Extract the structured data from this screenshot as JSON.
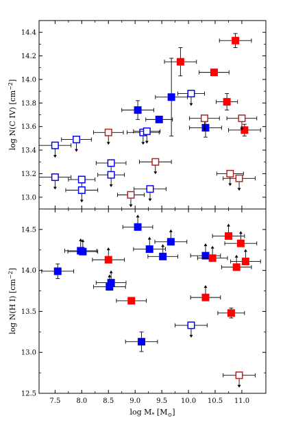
{
  "chart_data": [
    {
      "panel": "top",
      "type": "scatter",
      "ylabel": "log N(C IV) [cm$^{-2}$]",
      "ylabel_parts": [
        "log N(C IV) [cm",
        "−2",
        "]"
      ],
      "xlim": [
        7.2,
        11.45
      ],
      "ylim": [
        12.9,
        14.5
      ],
      "yticks": [
        13.0,
        13.2,
        13.4,
        13.6,
        13.8,
        14.0,
        14.2,
        14.4
      ],
      "ytick_labels": [
        "13.0",
        "13.2",
        "13.4",
        "13.6",
        "13.8",
        "14.0",
        "14.2",
        "14.4"
      ],
      "grid": false,
      "series": [
        {
          "marker": "filled-square",
          "color": "#0000ff",
          "limit": "none",
          "points": [
            {
              "x": 9.05,
              "y": 13.74,
              "xerr": 0.3,
              "yerr": 0.08
            },
            {
              "x": 9.45,
              "y": 13.66,
              "xerr": 0.25,
              "yerr": 0.0
            },
            {
              "x": 9.68,
              "y": 13.85,
              "xerr": 0.3,
              "yerr": 0.33
            },
            {
              "x": 10.32,
              "y": 13.59,
              "xerr": 0.3,
              "yerr": 0.08
            }
          ]
        },
        {
          "marker": "filled-square",
          "color": "#ff0000",
          "limit": "none",
          "points": [
            {
              "x": 9.85,
              "y": 14.15,
              "xerr": 0.3,
              "yerr": 0.12
            },
            {
              "x": 10.48,
              "y": 14.06,
              "xerr": 0.28,
              "yerr": 0.0
            },
            {
              "x": 10.72,
              "y": 13.81,
              "xerr": 0.2,
              "yerr": 0.07
            },
            {
              "x": 10.88,
              "y": 14.33,
              "xerr": 0.3,
              "yerr": 0.06
            },
            {
              "x": 11.05,
              "y": 13.57,
              "xerr": 0.3,
              "yerr": 0.05
            }
          ]
        },
        {
          "marker": "open-square",
          "color": "#0000ff",
          "limit": "upper",
          "points": [
            {
              "x": 7.5,
              "y": 13.44,
              "xerr": 0.3
            },
            {
              "x": 7.5,
              "y": 13.17,
              "xerr": 0.3
            },
            {
              "x": 7.9,
              "y": 13.49,
              "xerr": 0.28
            },
            {
              "x": 8.0,
              "y": 13.15,
              "xerr": 0.25
            },
            {
              "x": 8.0,
              "y": 13.06,
              "xerr": 0.3
            },
            {
              "x": 8.55,
              "y": 13.29,
              "xerr": 0.28
            },
            {
              "x": 8.55,
              "y": 13.19,
              "xerr": 0.25
            },
            {
              "x": 9.15,
              "y": 13.55,
              "xerr": 0.3
            },
            {
              "x": 9.22,
              "y": 13.56,
              "xerr": 0.25
            },
            {
              "x": 9.28,
              "y": 13.07,
              "xerr": 0.3
            },
            {
              "x": 10.05,
              "y": 13.88,
              "xerr": 0.25
            }
          ]
        },
        {
          "marker": "open-square",
          "color": "#b22222",
          "limit": "upper",
          "points": [
            {
              "x": 8.5,
              "y": 13.55,
              "xerr": 0.28
            },
            {
              "x": 8.92,
              "y": 13.02,
              "xerr": 0.25
            },
            {
              "x": 9.38,
              "y": 13.3,
              "xerr": 0.3
            },
            {
              "x": 10.3,
              "y": 13.67,
              "xerr": 0.28
            },
            {
              "x": 10.78,
              "y": 13.2,
              "xerr": 0.25
            },
            {
              "x": 10.95,
              "y": 13.16,
              "xerr": 0.3
            },
            {
              "x": 11.0,
              "y": 13.67,
              "xerr": 0.28
            }
          ]
        }
      ]
    },
    {
      "panel": "bottom",
      "type": "scatter",
      "xlabel": "log M$_*$ [M$_\\odot$]",
      "xlabel_parts": [
        "log M",
        "*",
        " [M",
        "⊙",
        "]"
      ],
      "ylabel": "log N(H I) [cm$^{-2}$]",
      "ylabel_parts": [
        "log N(H I) [cm",
        "−2",
        "]"
      ],
      "xlim": [
        7.2,
        11.45
      ],
      "ylim": [
        12.5,
        14.75
      ],
      "xticks": [
        7.5,
        8.0,
        8.5,
        9.0,
        9.5,
        10.0,
        10.5,
        11.0
      ],
      "xtick_labels": [
        "7.5",
        "8.0",
        "8.5",
        "9.0",
        "9.5",
        "10.0",
        "10.5",
        "11.0"
      ],
      "yticks": [
        12.5,
        13.0,
        13.5,
        14.0,
        14.5
      ],
      "ytick_labels": [
        "12.5",
        "13.0",
        "13.5",
        "14.0",
        "14.5"
      ],
      "grid": false,
      "series": [
        {
          "marker": "filled-square",
          "color": "#0000ff",
          "limit": "none",
          "points": [
            {
              "x": 7.55,
              "y": 13.99,
              "xerr": 0.3,
              "yerr": 0.09
            },
            {
              "x": 9.12,
              "y": 13.13,
              "xerr": 0.3,
              "yerr": 0.12
            }
          ]
        },
        {
          "marker": "filled-square",
          "color": "#0000ff",
          "limit": "lower",
          "points": [
            {
              "x": 7.98,
              "y": 14.24,
              "xerr": 0.3
            },
            {
              "x": 8.02,
              "y": 14.23,
              "xerr": 0.28
            },
            {
              "x": 8.52,
              "y": 13.8,
              "xerr": 0.3
            },
            {
              "x": 8.55,
              "y": 13.85,
              "xerr": 0.28
            },
            {
              "x": 9.05,
              "y": 14.53,
              "xerr": 0.28
            },
            {
              "x": 9.27,
              "y": 14.26,
              "xerr": 0.3
            },
            {
              "x": 9.52,
              "y": 14.17,
              "xerr": 0.28
            },
            {
              "x": 9.67,
              "y": 14.35,
              "xerr": 0.3
            },
            {
              "x": 10.32,
              "y": 14.18,
              "xerr": 0.28
            }
          ]
        },
        {
          "marker": "filled-square",
          "color": "#ff0000",
          "limit": "none",
          "points": [
            {
              "x": 8.93,
              "y": 13.63,
              "xerr": 0.28,
              "yerr": 0.0
            },
            {
              "x": 10.8,
              "y": 13.48,
              "xerr": 0.25,
              "yerr": 0.06
            }
          ]
        },
        {
          "marker": "filled-square",
          "color": "#ff0000",
          "limit": "lower",
          "points": [
            {
              "x": 8.5,
              "y": 14.13,
              "xerr": 0.3
            },
            {
              "x": 10.32,
              "y": 13.67,
              "xerr": 0.28
            },
            {
              "x": 10.45,
              "y": 14.15,
              "xerr": 0.28
            },
            {
              "x": 10.75,
              "y": 14.42,
              "xerr": 0.3
            },
            {
              "x": 10.9,
              "y": 14.04,
              "xerr": 0.28
            },
            {
              "x": 10.98,
              "y": 14.33,
              "xerr": 0.3
            },
            {
              "x": 11.07,
              "y": 14.11,
              "xerr": 0.28
            }
          ]
        },
        {
          "marker": "open-square",
          "color": "#0000ff",
          "limit": "upper",
          "points": [
            {
              "x": 10.05,
              "y": 13.33,
              "xerr": 0.3
            }
          ]
        },
        {
          "marker": "open-square",
          "color": "#b22222",
          "limit": "upper",
          "points": [
            {
              "x": 10.95,
              "y": 12.72,
              "xerr": 0.3
            }
          ]
        }
      ]
    }
  ]
}
